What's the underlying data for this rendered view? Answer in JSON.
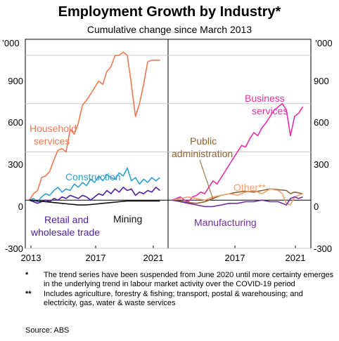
{
  "title": "Employment Growth by Industry*",
  "subtitle": "Cumulative change since March 2013",
  "unit": "’000",
  "yticks": [
    "900",
    "600",
    "300",
    "0",
    "-300"
  ],
  "xticks_left": [
    "2013",
    "2017",
    "2021"
  ],
  "xticks_right": [
    "2017",
    "2021"
  ],
  "colors": {
    "household": "#f07850",
    "construction": "#30a0d0",
    "retail": "#5020a0",
    "mining": "#101010",
    "business": "#e030a8",
    "public": "#906030",
    "other": "#f0a070",
    "manufacturing": "#7030a0"
  },
  "labels": {
    "household_1": "Household",
    "household_2": "services",
    "construction": "Construction",
    "retail_1": "Retail and",
    "retail_2": "wholesale trade",
    "mining": "Mining",
    "business_1": "Business",
    "business_2": "services",
    "public_1": "Public",
    "public_2": "administration",
    "other": "Other**",
    "manufacturing": "Manufacturing"
  },
  "notes": [
    {
      "marker": "*",
      "text": "The trend series have been suspended from June 2020 until more certainty emerges in the underlying trend in labour market activity over the COVID-19 period"
    },
    {
      "marker": "**",
      "text": "Includes agriculture, forestry & fishing; transport, postal & warehousing; and electricity, gas, water & waste services"
    }
  ],
  "source": "Source:   ABS",
  "chart_data": [
    {
      "type": "line",
      "title": "",
      "ylabel": "’000",
      "ylim": [
        -300,
        1000
      ],
      "xlim": [
        2013.0,
        2021.75
      ],
      "series": [
        {
          "name": "Household services",
          "color": "#f07850",
          "x": [
            2013.25,
            2013.5,
            2013.75,
            2014.0,
            2014.25,
            2014.5,
            2014.75,
            2015.0,
            2015.25,
            2015.5,
            2015.75,
            2016.0,
            2016.25,
            2016.5,
            2016.75,
            2017.0,
            2017.25,
            2017.5,
            2017.75,
            2018.0,
            2018.25,
            2018.5,
            2018.75,
            2019.0,
            2019.25,
            2019.5,
            2019.75,
            2020.0,
            2020.25,
            2020.5,
            2020.75,
            2021.0,
            2021.25
          ],
          "y": [
            0,
            40,
            60,
            140,
            150,
            180,
            250,
            310,
            320,
            300,
            440,
            410,
            480,
            590,
            620,
            660,
            700,
            740,
            720,
            800,
            830,
            900,
            900,
            920,
            900,
            720,
            520,
            600,
            720,
            860,
            870,
            870,
            870
          ]
        },
        {
          "name": "Construction",
          "color": "#30a0d0",
          "x": [
            2013.25,
            2013.5,
            2013.75,
            2014.0,
            2014.25,
            2014.5,
            2014.75,
            2015.0,
            2015.25,
            2015.5,
            2015.75,
            2016.0,
            2016.25,
            2016.5,
            2016.75,
            2017.0,
            2017.25,
            2017.5,
            2017.75,
            2018.0,
            2018.25,
            2018.5,
            2018.75,
            2019.0,
            2019.25,
            2019.5,
            2019.75,
            2020.0,
            2020.25,
            2020.5,
            2020.75,
            2021.0,
            2021.25
          ],
          "y": [
            0,
            10,
            -10,
            20,
            40,
            30,
            60,
            80,
            50,
            70,
            60,
            100,
            80,
            110,
            90,
            130,
            110,
            150,
            120,
            160,
            140,
            130,
            170,
            150,
            200,
            120,
            140,
            100,
            130,
            110,
            140,
            120,
            140
          ]
        },
        {
          "name": "Retail and wholesale trade",
          "color": "#5020a0",
          "x": [
            2013.25,
            2013.5,
            2013.75,
            2014.0,
            2014.25,
            2014.5,
            2014.75,
            2015.0,
            2015.25,
            2015.5,
            2015.75,
            2016.0,
            2016.25,
            2016.5,
            2016.75,
            2017.0,
            2017.25,
            2017.5,
            2017.75,
            2018.0,
            2018.25,
            2018.5,
            2018.75,
            2019.0,
            2019.25,
            2019.5,
            2019.75,
            2020.0,
            2020.25,
            2020.5,
            2020.75,
            2021.0,
            2021.25
          ],
          "y": [
            0,
            -10,
            -20,
            -10,
            0,
            -10,
            10,
            0,
            20,
            10,
            30,
            20,
            10,
            30,
            20,
            0,
            20,
            40,
            30,
            60,
            40,
            70,
            50,
            80,
            60,
            70,
            30,
            50,
            40,
            60,
            50,
            80,
            60
          ]
        },
        {
          "name": "Mining",
          "color": "#101010",
          "x": [
            2013.25,
            2013.75,
            2014.25,
            2014.75,
            2015.25,
            2015.75,
            2016.25,
            2016.75,
            2017.25,
            2017.75,
            2018.25,
            2018.75,
            2019.25,
            2019.75,
            2020.25,
            2020.75,
            2021.25
          ],
          "y": [
            0,
            -5,
            -10,
            -15,
            -20,
            -25,
            -30,
            -30,
            -25,
            -20,
            -15,
            -10,
            -5,
            -5,
            -5,
            -5,
            -5
          ]
        }
      ]
    },
    {
      "type": "line",
      "title": "",
      "ylabel": "’000",
      "ylim": [
        -300,
        1000
      ],
      "xlim": [
        2013.0,
        2021.75
      ],
      "series": [
        {
          "name": "Business services",
          "color": "#e030a8",
          "x": [
            2013.25,
            2013.5,
            2013.75,
            2014.0,
            2014.25,
            2014.5,
            2014.75,
            2015.0,
            2015.25,
            2015.5,
            2015.75,
            2016.0,
            2016.25,
            2016.5,
            2016.75,
            2017.0,
            2017.25,
            2017.5,
            2017.75,
            2018.0,
            2018.25,
            2018.5,
            2018.75,
            2019.0,
            2019.25,
            2019.5,
            2019.75,
            2020.0,
            2020.25,
            2020.5,
            2020.75,
            2021.0,
            2021.25
          ],
          "y": [
            0,
            10,
            20,
            0,
            -10,
            20,
            30,
            50,
            40,
            80,
            120,
            100,
            140,
            180,
            220,
            260,
            300,
            340,
            330,
            380,
            420,
            400,
            450,
            480,
            520,
            560,
            580,
            600,
            560,
            400,
            520,
            540,
            580
          ]
        },
        {
          "name": "Public administration",
          "color": "#906030",
          "x": [
            2013.25,
            2013.75,
            2014.25,
            2014.75,
            2015.25,
            2015.75,
            2016.25,
            2016.75,
            2017.25,
            2017.75,
            2018.25,
            2018.75,
            2019.25,
            2019.75,
            2020.25,
            2020.5,
            2020.75,
            2021.0,
            2021.25
          ],
          "y": [
            0,
            -5,
            -15,
            -20,
            -10,
            10,
            30,
            40,
            50,
            55,
            50,
            60,
            70,
            65,
            60,
            40,
            50,
            45,
            40
          ]
        },
        {
          "name": "Other",
          "color": "#f0a070",
          "x": [
            2013.25,
            2013.75,
            2014.25,
            2014.75,
            2015.25,
            2015.75,
            2016.25,
            2016.75,
            2017.25,
            2017.75,
            2018.25,
            2018.75,
            2019.25,
            2019.75,
            2020.0,
            2020.25,
            2020.5,
            2020.75,
            2021.0,
            2021.25
          ],
          "y": [
            0,
            10,
            20,
            10,
            0,
            20,
            30,
            40,
            30,
            50,
            60,
            40,
            70,
            60,
            40,
            -20,
            -30,
            20,
            30,
            40
          ]
        },
        {
          "name": "Manufacturing",
          "color": "#7030a0",
          "x": [
            2013.25,
            2013.75,
            2014.25,
            2014.75,
            2015.25,
            2015.75,
            2016.25,
            2016.75,
            2017.25,
            2017.75,
            2018.25,
            2018.75,
            2019.25,
            2019.75,
            2020.25,
            2020.5,
            2020.75,
            2021.0,
            2021.25
          ],
          "y": [
            0,
            -10,
            -20,
            -30,
            -40,
            -40,
            -30,
            -20,
            -20,
            -10,
            -10,
            0,
            -10,
            -10,
            -30,
            10,
            20,
            10,
            20
          ]
        }
      ]
    }
  ]
}
